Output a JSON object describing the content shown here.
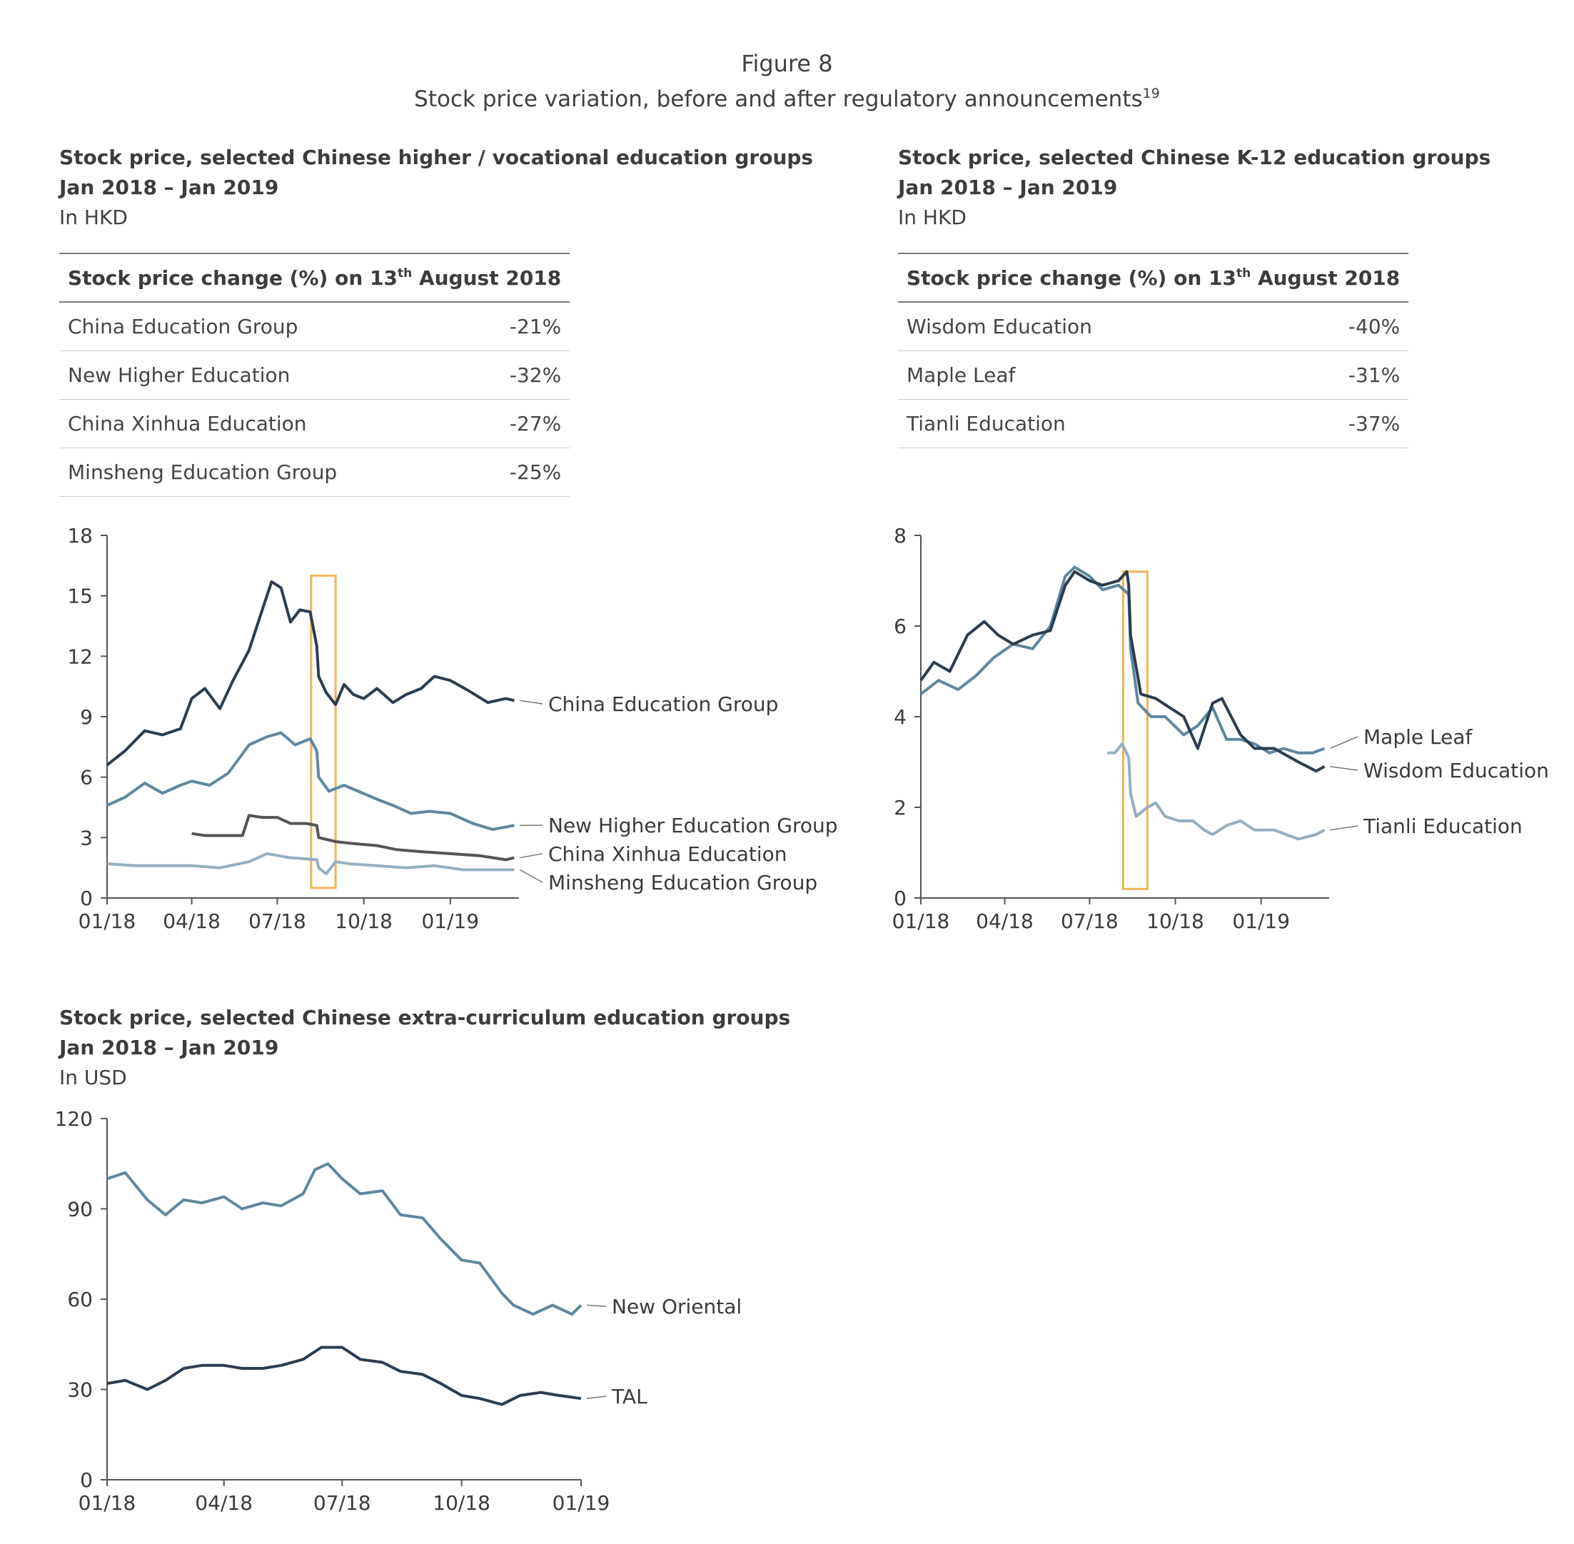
{
  "figure": {
    "number": "Figure 8",
    "subtitle": "Stock price variation, before and after regulatory announcements",
    "footnote_mark": "19"
  },
  "panels": [
    {
      "title": "Stock price, selected Chinese higher / vocational education groups",
      "date_range": "Jan 2018 – Jan 2019",
      "unit": "In HKD",
      "table": {
        "header_prefix": "Stock price change (%) on 13",
        "header_sup": "th",
        "header_suffix": " August 2018",
        "rows": [
          {
            "name": "China Education Group",
            "change": "-21%"
          },
          {
            "name": "New Higher Education",
            "change": "-32%"
          },
          {
            "name": "China Xinhua Education",
            "change": "-27%"
          },
          {
            "name": "Minsheng Education Group",
            "change": "-25%"
          }
        ]
      }
    },
    {
      "title": "Stock price, selected Chinese K-12 education groups",
      "date_range": "Jan 2018 – Jan 2019",
      "unit": "In HKD",
      "table": {
        "header_prefix": "Stock price change (%) on 13",
        "header_sup": "th",
        "header_suffix": " August 2018",
        "rows": [
          {
            "name": "Wisdom Education",
            "change": "-40%"
          },
          {
            "name": "Maple Leaf",
            "change": "-31%"
          },
          {
            "name": "Tianli Education",
            "change": "-37%"
          }
        ]
      }
    },
    {
      "title": "Stock price, selected Chinese extra-curriculum education groups",
      "date_range": "Jan 2018 – Jan 2019",
      "unit": "In USD"
    }
  ],
  "colors": {
    "dark": "#2b3d4e",
    "mid": "#5f879e",
    "charcoal": "#545454",
    "light": "#95afbf",
    "highlight": "#f0b35a",
    "axis": "#555555"
  },
  "chart_data": [
    {
      "type": "line",
      "ylim": [
        0,
        18
      ],
      "yticks": [
        0,
        3,
        6,
        9,
        12,
        15,
        18
      ],
      "xlim": [
        "2018-01-01",
        "2019-03-15"
      ],
      "xticks": [
        "01/18",
        "04/18",
        "07/18",
        "10/18",
        "01/19"
      ],
      "highlight": {
        "x": [
          "2018-08-06",
          "2018-09-01"
        ],
        "y": [
          0.5,
          16
        ]
      },
      "series": [
        {
          "name": "China Education Group",
          "color": "dark",
          "x": [
            "2018-01-01",
            "2018-01-20",
            "2018-02-10",
            "2018-03-01",
            "2018-03-20",
            "2018-04-01",
            "2018-04-15",
            "2018-05-01",
            "2018-05-15",
            "2018-06-01",
            "2018-06-15",
            "2018-06-25",
            "2018-07-05",
            "2018-07-15",
            "2018-07-25",
            "2018-08-05",
            "2018-08-12",
            "2018-08-14",
            "2018-08-22",
            "2018-09-01",
            "2018-09-10",
            "2018-09-20",
            "2018-10-01",
            "2018-10-15",
            "2018-11-01",
            "2018-11-15",
            "2018-12-01",
            "2018-12-15",
            "2019-01-01",
            "2019-01-20",
            "2019-02-10",
            "2019-03-01",
            "2019-03-10"
          ],
          "y": [
            6.6,
            7.3,
            8.3,
            8.1,
            8.4,
            9.9,
            10.4,
            9.4,
            10.8,
            12.3,
            14.3,
            15.7,
            15.4,
            13.7,
            14.3,
            14.2,
            12.5,
            11.0,
            10.2,
            9.6,
            10.6,
            10.1,
            9.9,
            10.4,
            9.7,
            10.1,
            10.4,
            11.0,
            10.8,
            10.3,
            9.7,
            9.9,
            9.8
          ]
        },
        {
          "name": "New Higher Education Group",
          "color": "mid",
          "x": [
            "2018-01-01",
            "2018-01-20",
            "2018-02-10",
            "2018-03-01",
            "2018-03-20",
            "2018-04-01",
            "2018-04-20",
            "2018-05-10",
            "2018-06-01",
            "2018-06-20",
            "2018-07-05",
            "2018-07-20",
            "2018-08-05",
            "2018-08-12",
            "2018-08-14",
            "2018-08-25",
            "2018-09-10",
            "2018-09-25",
            "2018-10-15",
            "2018-11-01",
            "2018-11-20",
            "2018-12-10",
            "2019-01-01",
            "2019-01-25",
            "2019-02-15",
            "2019-03-10"
          ],
          "y": [
            4.6,
            5.0,
            5.7,
            5.2,
            5.6,
            5.8,
            5.6,
            6.2,
            7.6,
            8.0,
            8.2,
            7.6,
            7.9,
            7.3,
            6.0,
            5.3,
            5.6,
            5.3,
            4.9,
            4.6,
            4.2,
            4.3,
            4.2,
            3.7,
            3.4,
            3.6
          ]
        },
        {
          "name": "China Xinhua Education",
          "color": "charcoal",
          "x": [
            "2018-04-01",
            "2018-04-15",
            "2018-05-10",
            "2018-05-25",
            "2018-06-01",
            "2018-06-15",
            "2018-07-01",
            "2018-07-15",
            "2018-08-01",
            "2018-08-12",
            "2018-08-14",
            "2018-09-01",
            "2018-09-20",
            "2018-10-15",
            "2018-11-05",
            "2018-12-01",
            "2019-01-01",
            "2019-02-01",
            "2019-03-01",
            "2019-03-10"
          ],
          "y": [
            3.2,
            3.1,
            3.1,
            3.1,
            4.1,
            4.0,
            4.0,
            3.7,
            3.7,
            3.6,
            3.0,
            2.8,
            2.7,
            2.6,
            2.4,
            2.3,
            2.2,
            2.1,
            1.9,
            2.0
          ]
        },
        {
          "name": "Minsheng Education Group",
          "color": "light",
          "x": [
            "2018-01-01",
            "2018-02-01",
            "2018-03-01",
            "2018-04-01",
            "2018-05-01",
            "2018-06-01",
            "2018-06-20",
            "2018-07-15",
            "2018-08-12",
            "2018-08-14",
            "2018-08-22",
            "2018-09-01",
            "2018-09-15",
            "2018-10-15",
            "2018-11-15",
            "2018-12-15",
            "2019-01-15",
            "2019-02-15",
            "2019-03-10"
          ],
          "y": [
            1.7,
            1.6,
            1.6,
            1.6,
            1.5,
            1.8,
            2.2,
            2.0,
            1.9,
            1.5,
            1.2,
            1.8,
            1.7,
            1.6,
            1.5,
            1.6,
            1.4,
            1.4,
            1.4
          ]
        }
      ]
    },
    {
      "type": "line",
      "ylim": [
        0,
        8
      ],
      "yticks": [
        0,
        2,
        4,
        6,
        8
      ],
      "xlim": [
        "2018-01-01",
        "2019-03-15"
      ],
      "xticks": [
        "01/18",
        "04/18",
        "07/18",
        "10/18",
        "01/19"
      ],
      "highlight": {
        "x": [
          "2018-08-06",
          "2018-09-01"
        ],
        "y": [
          0.2,
          7.2
        ]
      },
      "series": [
        {
          "name": "Maple Leaf",
          "color": "mid",
          "x": [
            "2018-01-01",
            "2018-01-20",
            "2018-02-10",
            "2018-03-01",
            "2018-03-20",
            "2018-04-10",
            "2018-05-01",
            "2018-05-20",
            "2018-06-05",
            "2018-06-15",
            "2018-07-01",
            "2018-07-15",
            "2018-08-01",
            "2018-08-12",
            "2018-08-14",
            "2018-08-22",
            "2018-09-05",
            "2018-09-20",
            "2018-10-10",
            "2018-10-25",
            "2018-11-10",
            "2018-11-25",
            "2018-12-10",
            "2018-12-25",
            "2019-01-10",
            "2019-01-25",
            "2019-02-10",
            "2019-02-25",
            "2019-03-10"
          ],
          "y": [
            4.5,
            4.8,
            4.6,
            4.9,
            5.3,
            5.6,
            5.5,
            6.0,
            7.1,
            7.3,
            7.1,
            6.8,
            6.9,
            6.7,
            5.5,
            4.3,
            4.0,
            4.0,
            3.6,
            3.8,
            4.2,
            3.5,
            3.5,
            3.4,
            3.2,
            3.3,
            3.2,
            3.2,
            3.3
          ]
        },
        {
          "name": "Wisdom Education",
          "color": "dark",
          "x": [
            "2018-01-01",
            "2018-01-15",
            "2018-02-01",
            "2018-02-20",
            "2018-03-10",
            "2018-03-25",
            "2018-04-10",
            "2018-05-01",
            "2018-05-20",
            "2018-06-05",
            "2018-06-15",
            "2018-07-01",
            "2018-07-15",
            "2018-08-01",
            "2018-08-10",
            "2018-08-12",
            "2018-08-14",
            "2018-08-25",
            "2018-09-10",
            "2018-09-25",
            "2018-10-10",
            "2018-10-25",
            "2018-11-10",
            "2018-11-20",
            "2018-12-10",
            "2018-12-25",
            "2019-01-15",
            "2019-02-10",
            "2019-03-01",
            "2019-03-10"
          ],
          "y": [
            4.8,
            5.2,
            5.0,
            5.8,
            6.1,
            5.8,
            5.6,
            5.8,
            5.9,
            6.9,
            7.2,
            7.0,
            6.9,
            7.0,
            7.2,
            6.9,
            5.8,
            4.5,
            4.4,
            4.2,
            4.0,
            3.3,
            4.3,
            4.4,
            3.6,
            3.3,
            3.3,
            3.0,
            2.8,
            2.9
          ]
        },
        {
          "name": "Tianli Education",
          "color": "light",
          "x": [
            "2018-07-20",
            "2018-07-28",
            "2018-08-05",
            "2018-08-12",
            "2018-08-14",
            "2018-08-20",
            "2018-09-01",
            "2018-09-10",
            "2018-09-20",
            "2018-10-05",
            "2018-10-20",
            "2018-11-01",
            "2018-11-10",
            "2018-11-25",
            "2018-12-10",
            "2018-12-25",
            "2019-01-15",
            "2019-02-10",
            "2019-03-01",
            "2019-03-10"
          ],
          "y": [
            3.2,
            3.2,
            3.4,
            3.1,
            2.3,
            1.8,
            2.0,
            2.1,
            1.8,
            1.7,
            1.7,
            1.5,
            1.4,
            1.6,
            1.7,
            1.5,
            1.5,
            1.3,
            1.4,
            1.5
          ]
        }
      ]
    },
    {
      "type": "line",
      "ylim": [
        0,
        120
      ],
      "yticks": [
        0,
        30,
        60,
        90,
        120
      ],
      "xlim": [
        "2018-01-01",
        "2019-01-01"
      ],
      "xticks": [
        "01/18",
        "04/18",
        "07/18",
        "10/18",
        "01/19"
      ],
      "series": [
        {
          "name": "New Oriental",
          "color": "mid",
          "x": [
            "2018-01-01",
            "2018-01-15",
            "2018-02-01",
            "2018-02-15",
            "2018-03-01",
            "2018-03-15",
            "2018-04-01",
            "2018-04-15",
            "2018-05-01",
            "2018-05-15",
            "2018-06-01",
            "2018-06-10",
            "2018-06-20",
            "2018-07-01",
            "2018-07-15",
            "2018-08-01",
            "2018-08-15",
            "2018-09-01",
            "2018-09-15",
            "2018-10-01",
            "2018-10-15",
            "2018-11-01",
            "2018-11-10",
            "2018-11-25",
            "2018-12-10",
            "2018-12-25",
            "2019-01-01"
          ],
          "y": [
            100,
            102,
            93,
            88,
            93,
            92,
            94,
            90,
            92,
            91,
            95,
            103,
            105,
            100,
            95,
            96,
            88,
            87,
            80,
            73,
            72,
            62,
            58,
            55,
            58,
            55,
            58
          ]
        },
        {
          "name": "TAL",
          "color": "dark",
          "x": [
            "2018-01-01",
            "2018-01-15",
            "2018-02-01",
            "2018-02-15",
            "2018-03-01",
            "2018-03-15",
            "2018-04-01",
            "2018-04-15",
            "2018-05-01",
            "2018-05-15",
            "2018-06-01",
            "2018-06-15",
            "2018-07-01",
            "2018-07-15",
            "2018-08-01",
            "2018-08-15",
            "2018-09-01",
            "2018-09-15",
            "2018-10-01",
            "2018-10-15",
            "2018-11-01",
            "2018-11-15",
            "2018-12-01",
            "2018-12-15",
            "2019-01-01"
          ],
          "y": [
            32,
            33,
            30,
            33,
            37,
            38,
            38,
            37,
            37,
            38,
            40,
            44,
            44,
            40,
            39,
            36,
            35,
            32,
            28,
            27,
            25,
            28,
            29,
            28,
            27
          ]
        }
      ]
    }
  ]
}
